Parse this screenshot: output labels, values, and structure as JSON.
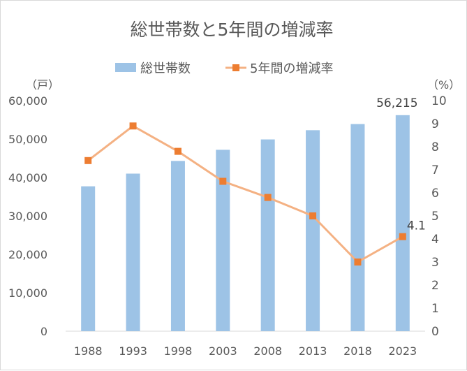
{
  "chart_data": {
    "type": "bar",
    "title": "総世帯数と5年間の増減率",
    "categories": [
      "1988",
      "1993",
      "1998",
      "2003",
      "2008",
      "2013",
      "2018",
      "2023"
    ],
    "series": [
      {
        "name": "総世帯数",
        "type": "bar",
        "axis": "left",
        "color": "#9dc3e6",
        "values": [
          37700,
          41000,
          44300,
          47200,
          49900,
          52300,
          53900,
          56215
        ]
      },
      {
        "name": "5年間の増減率",
        "type": "line",
        "axis": "right",
        "color": "#f4b183",
        "marker_color": "#ed7d31",
        "values": [
          7.4,
          8.9,
          7.8,
          6.5,
          5.8,
          5.0,
          3.0,
          4.1
        ]
      }
    ],
    "y_left": {
      "unit": "（戸）",
      "ylim": [
        0,
        60000
      ],
      "ticks": [
        "0",
        "10,000",
        "20,000",
        "30,000",
        "40,000",
        "50,000",
        "60,000"
      ]
    },
    "y_right": {
      "unit": "（%）",
      "ylim": [
        0,
        10
      ],
      "ticks": [
        "0",
        "1",
        "2",
        "3",
        "4",
        "5",
        "6",
        "7",
        "8",
        "9",
        "10"
      ]
    },
    "data_labels": [
      {
        "series": 0,
        "index": 7,
        "text": "56,215"
      },
      {
        "series": 1,
        "index": 7,
        "text": "4.1"
      }
    ],
    "legend_position": "top",
    "grid": false
  }
}
